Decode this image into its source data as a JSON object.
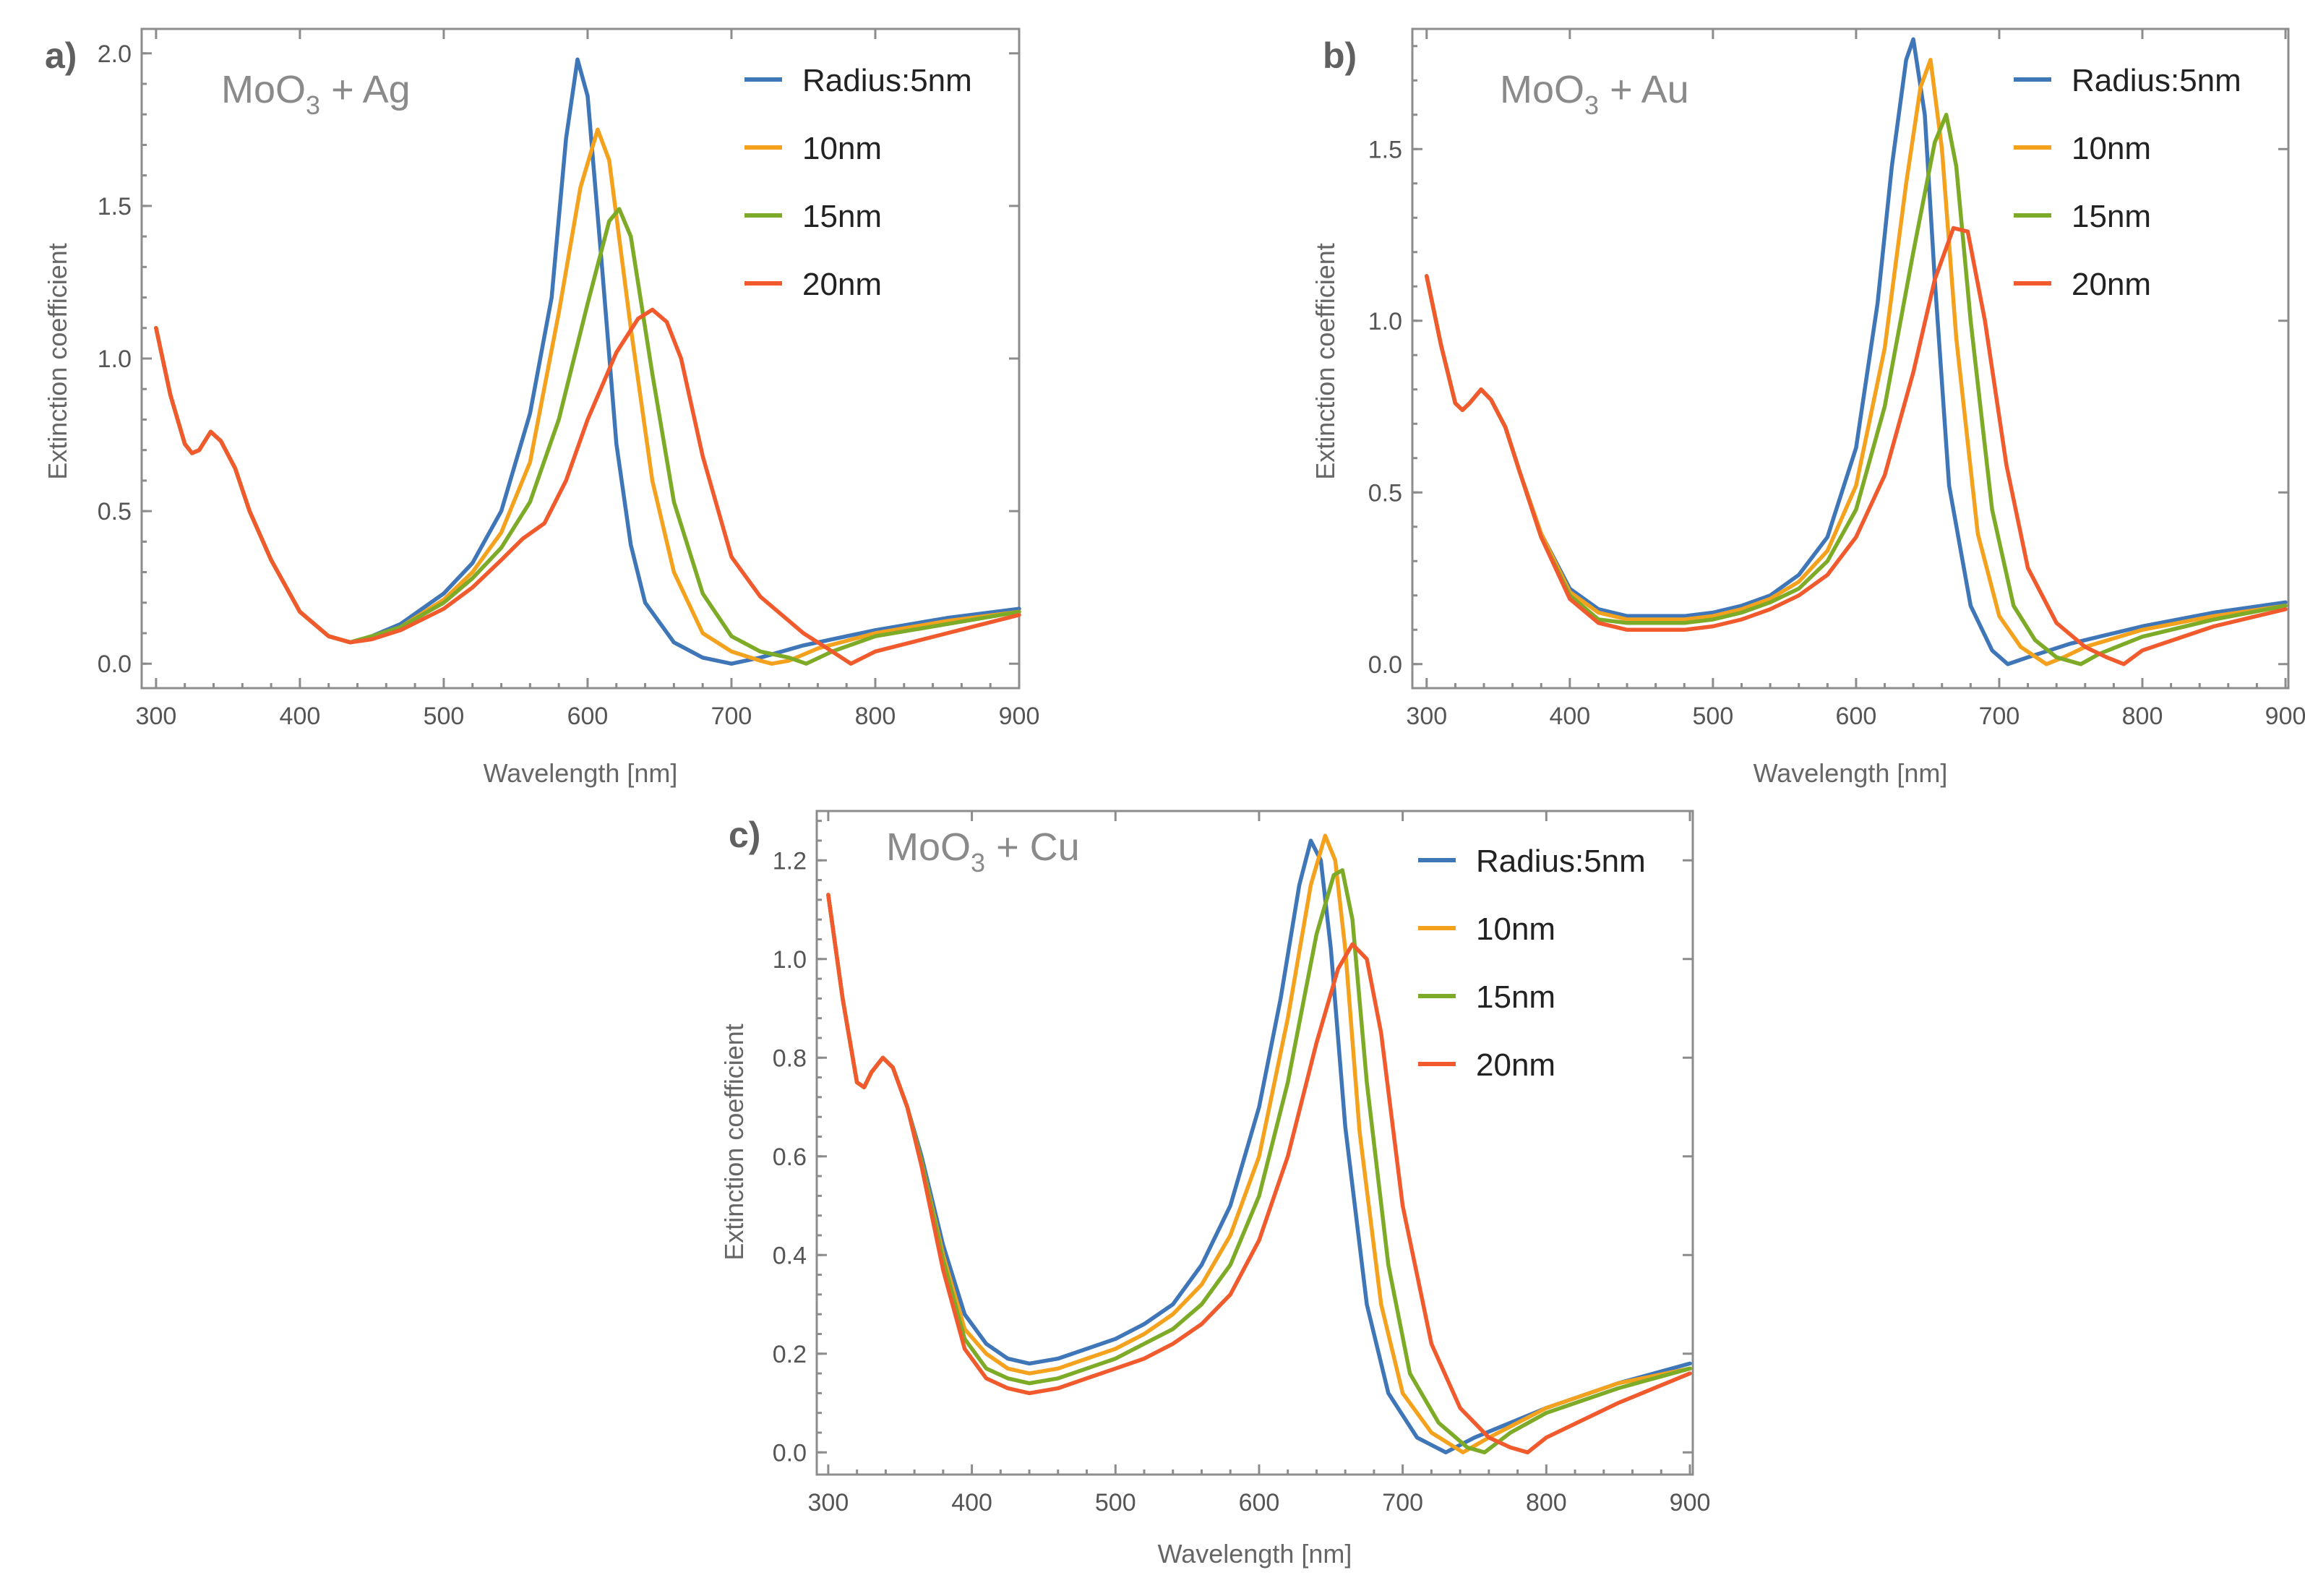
{
  "figure": {
    "colors": [
      "#3f76b8",
      "#f4a21e",
      "#7dab27",
      "#f15a2c"
    ],
    "legend": [
      "Radius:5nm",
      "10nm",
      "15nm",
      "20nm"
    ]
  },
  "chart_data": [
    {
      "type": "line",
      "panel_label": "a)",
      "title": "MoO3 + Ag",
      "title_main": "MoO",
      "title_sub": "3",
      "title_rest": " + Ag",
      "xlabel": "Wavelength [nm]",
      "ylabel": "Extinction coefficient",
      "xlim": [
        290,
        900
      ],
      "ylim": [
        -0.08,
        2.08
      ],
      "xticks": [
        300,
        400,
        500,
        600,
        700,
        800,
        900
      ],
      "xtick_labels": [
        "300",
        "400",
        "500",
        "600",
        "700",
        "800",
        "900"
      ],
      "yticks": [
        0.0,
        0.5,
        1.0,
        1.5,
        2.0
      ],
      "ytick_labels": [
        "0.0",
        "0.5",
        "1.0",
        "1.5",
        "2.0"
      ],
      "series": [
        {
          "name": "Radius:5nm",
          "x": [
            300,
            310,
            320,
            325,
            330,
            338,
            345,
            355,
            365,
            380,
            400,
            420,
            435,
            450,
            470,
            500,
            520,
            540,
            560,
            575,
            585,
            593,
            600,
            610,
            620,
            630,
            640,
            660,
            680,
            700,
            720,
            750,
            800,
            850,
            900
          ],
          "values": [
            1.1,
            0.88,
            0.72,
            0.69,
            0.7,
            0.76,
            0.73,
            0.64,
            0.5,
            0.34,
            0.17,
            0.09,
            0.07,
            0.09,
            0.13,
            0.23,
            0.33,
            0.5,
            0.82,
            1.2,
            1.72,
            1.98,
            1.86,
            1.3,
            0.72,
            0.39,
            0.2,
            0.07,
            0.02,
            0.0,
            0.02,
            0.06,
            0.11,
            0.15,
            0.18
          ]
        },
        {
          "name": "10nm",
          "x": [
            300,
            310,
            320,
            325,
            330,
            338,
            345,
            355,
            365,
            380,
            400,
            420,
            435,
            450,
            470,
            500,
            520,
            540,
            560,
            580,
            595,
            607,
            615,
            630,
            645,
            660,
            680,
            700,
            720,
            728,
            740,
            760,
            800,
            850,
            900
          ],
          "values": [
            1.1,
            0.88,
            0.72,
            0.69,
            0.7,
            0.76,
            0.73,
            0.64,
            0.5,
            0.34,
            0.17,
            0.09,
            0.07,
            0.09,
            0.12,
            0.21,
            0.3,
            0.43,
            0.66,
            1.15,
            1.56,
            1.75,
            1.65,
            1.1,
            0.6,
            0.3,
            0.1,
            0.04,
            0.01,
            0.0,
            0.01,
            0.05,
            0.1,
            0.14,
            0.17
          ]
        },
        {
          "name": "15nm",
          "x": [
            300,
            310,
            320,
            325,
            330,
            338,
            345,
            355,
            365,
            380,
            400,
            420,
            435,
            450,
            470,
            500,
            520,
            540,
            560,
            580,
            600,
            615,
            622,
            630,
            645,
            660,
            680,
            700,
            720,
            740,
            752,
            770,
            800,
            850,
            900
          ],
          "values": [
            1.1,
            0.88,
            0.72,
            0.69,
            0.7,
            0.76,
            0.73,
            0.64,
            0.5,
            0.34,
            0.17,
            0.09,
            0.07,
            0.09,
            0.12,
            0.2,
            0.28,
            0.38,
            0.53,
            0.8,
            1.18,
            1.45,
            1.49,
            1.4,
            0.95,
            0.53,
            0.23,
            0.09,
            0.04,
            0.02,
            0.0,
            0.04,
            0.09,
            0.13,
            0.17
          ]
        },
        {
          "name": "20nm",
          "x": [
            300,
            310,
            320,
            325,
            330,
            338,
            345,
            355,
            365,
            380,
            400,
            420,
            435,
            450,
            470,
            500,
            520,
            540,
            555,
            570,
            585,
            600,
            620,
            635,
            645,
            655,
            665,
            680,
            700,
            720,
            750,
            770,
            783,
            800,
            850,
            900
          ],
          "values": [
            1.1,
            0.88,
            0.72,
            0.69,
            0.7,
            0.76,
            0.73,
            0.64,
            0.5,
            0.34,
            0.17,
            0.09,
            0.07,
            0.08,
            0.11,
            0.18,
            0.25,
            0.34,
            0.41,
            0.46,
            0.6,
            0.8,
            1.02,
            1.13,
            1.16,
            1.12,
            1.0,
            0.68,
            0.35,
            0.22,
            0.1,
            0.04,
            0.0,
            0.04,
            0.1,
            0.16
          ]
        }
      ]
    },
    {
      "type": "line",
      "panel_label": "b)",
      "title": "MoO3 + Au",
      "title_main": "MoO",
      "title_sub": "3",
      "title_rest": " + Au",
      "xlabel": "Wavelength [nm]",
      "ylabel": "Extinction coefficient",
      "xlim": [
        290,
        902
      ],
      "ylim": [
        -0.07,
        1.85
      ],
      "xticks": [
        300,
        400,
        500,
        600,
        700,
        800,
        900
      ],
      "xtick_labels": [
        "300",
        "400",
        "500",
        "600",
        "700",
        "800",
        "900"
      ],
      "yticks": [
        0.0,
        0.5,
        1.0,
        1.5
      ],
      "ytick_labels": [
        "0.0",
        "0.5",
        "1.0",
        "1.5"
      ],
      "series": [
        {
          "name": "Radius:5nm",
          "x": [
            300,
            310,
            320,
            325,
            330,
            338,
            345,
            355,
            365,
            380,
            400,
            420,
            440,
            460,
            480,
            500,
            520,
            540,
            560,
            580,
            600,
            615,
            625,
            635,
            640,
            648,
            655,
            665,
            680,
            695,
            706,
            720,
            750,
            800,
            850,
            900
          ],
          "values": [
            1.13,
            0.93,
            0.76,
            0.74,
            0.76,
            0.8,
            0.77,
            0.69,
            0.56,
            0.38,
            0.22,
            0.16,
            0.14,
            0.14,
            0.14,
            0.15,
            0.17,
            0.2,
            0.26,
            0.37,
            0.63,
            1.05,
            1.45,
            1.76,
            1.82,
            1.6,
            1.12,
            0.52,
            0.17,
            0.04,
            0.0,
            0.02,
            0.06,
            0.11,
            0.15,
            0.18
          ]
        },
        {
          "name": "10nm",
          "x": [
            300,
            310,
            320,
            325,
            330,
            338,
            345,
            355,
            365,
            380,
            400,
            420,
            440,
            460,
            480,
            500,
            520,
            540,
            560,
            580,
            600,
            620,
            635,
            645,
            652,
            660,
            670,
            685,
            700,
            715,
            733,
            745,
            760,
            800,
            850,
            900
          ],
          "values": [
            1.13,
            0.93,
            0.76,
            0.74,
            0.76,
            0.8,
            0.77,
            0.69,
            0.56,
            0.38,
            0.21,
            0.15,
            0.13,
            0.13,
            0.13,
            0.14,
            0.16,
            0.19,
            0.24,
            0.33,
            0.52,
            0.92,
            1.4,
            1.68,
            1.76,
            1.5,
            0.95,
            0.38,
            0.14,
            0.05,
            0.0,
            0.02,
            0.05,
            0.1,
            0.14,
            0.17
          ]
        },
        {
          "name": "15nm",
          "x": [
            300,
            310,
            320,
            325,
            330,
            338,
            345,
            355,
            365,
            380,
            400,
            420,
            440,
            460,
            480,
            500,
            520,
            540,
            560,
            580,
            600,
            620,
            640,
            655,
            663,
            670,
            680,
            695,
            710,
            725,
            740,
            757,
            770,
            800,
            850,
            900
          ],
          "values": [
            1.13,
            0.93,
            0.76,
            0.74,
            0.76,
            0.8,
            0.77,
            0.69,
            0.56,
            0.37,
            0.2,
            0.13,
            0.12,
            0.12,
            0.12,
            0.13,
            0.15,
            0.18,
            0.22,
            0.3,
            0.45,
            0.75,
            1.2,
            1.52,
            1.6,
            1.45,
            1.0,
            0.45,
            0.17,
            0.07,
            0.02,
            0.0,
            0.03,
            0.08,
            0.13,
            0.17
          ]
        },
        {
          "name": "20nm",
          "x": [
            300,
            310,
            320,
            325,
            330,
            338,
            345,
            355,
            365,
            380,
            400,
            420,
            440,
            460,
            480,
            500,
            520,
            540,
            560,
            580,
            600,
            620,
            640,
            655,
            668,
            678,
            690,
            705,
            720,
            740,
            760,
            775,
            787,
            800,
            850,
            900
          ],
          "values": [
            1.13,
            0.93,
            0.76,
            0.74,
            0.76,
            0.8,
            0.77,
            0.69,
            0.56,
            0.37,
            0.19,
            0.12,
            0.1,
            0.1,
            0.1,
            0.11,
            0.13,
            0.16,
            0.2,
            0.26,
            0.37,
            0.55,
            0.85,
            1.12,
            1.27,
            1.26,
            1.0,
            0.58,
            0.28,
            0.12,
            0.05,
            0.02,
            0.0,
            0.04,
            0.11,
            0.16
          ]
        }
      ]
    },
    {
      "type": "line",
      "panel_label": "c)",
      "title": "MoO3 + Cu",
      "title_main": "MoO",
      "title_sub": "3",
      "title_rest": " + Cu",
      "xlabel": "Wavelength [nm]",
      "ylabel": "Extinction coefficient",
      "xlim": [
        292,
        902
      ],
      "ylim": [
        -0.045,
        1.3
      ],
      "xticks": [
        300,
        400,
        500,
        600,
        700,
        800,
        900
      ],
      "xtick_labels": [
        "300",
        "400",
        "500",
        "600",
        "700",
        "800",
        "900"
      ],
      "yticks": [
        0.0,
        0.2,
        0.4,
        0.6,
        0.8,
        1.0,
        1.2
      ],
      "ytick_labels": [
        "0.0",
        "0.2",
        "0.4",
        "0.6",
        "0.8",
        "1.0",
        "1.2"
      ],
      "series": [
        {
          "name": "Radius:5nm",
          "x": [
            300,
            310,
            320,
            325,
            330,
            338,
            345,
            355,
            365,
            380,
            395,
            410,
            425,
            440,
            460,
            480,
            500,
            520,
            540,
            560,
            580,
            600,
            615,
            628,
            636,
            643,
            650,
            660,
            675,
            690,
            710,
            730,
            750,
            800,
            850,
            900
          ],
          "values": [
            1.13,
            0.92,
            0.75,
            0.74,
            0.77,
            0.8,
            0.78,
            0.7,
            0.6,
            0.42,
            0.28,
            0.22,
            0.19,
            0.18,
            0.19,
            0.21,
            0.23,
            0.26,
            0.3,
            0.38,
            0.5,
            0.7,
            0.92,
            1.15,
            1.24,
            1.2,
            1.02,
            0.66,
            0.3,
            0.12,
            0.03,
            0.0,
            0.03,
            0.09,
            0.14,
            0.18
          ]
        },
        {
          "name": "10nm",
          "x": [
            300,
            310,
            320,
            325,
            330,
            338,
            345,
            355,
            365,
            380,
            395,
            410,
            425,
            440,
            460,
            480,
            500,
            520,
            540,
            560,
            580,
            600,
            620,
            636,
            646,
            653,
            660,
            670,
            685,
            700,
            720,
            742,
            760,
            800,
            850,
            900
          ],
          "values": [
            1.13,
            0.92,
            0.75,
            0.74,
            0.77,
            0.8,
            0.78,
            0.7,
            0.59,
            0.4,
            0.25,
            0.2,
            0.17,
            0.16,
            0.17,
            0.19,
            0.21,
            0.24,
            0.28,
            0.34,
            0.44,
            0.6,
            0.88,
            1.15,
            1.25,
            1.2,
            1.02,
            0.65,
            0.3,
            0.12,
            0.04,
            0.0,
            0.03,
            0.09,
            0.14,
            0.17
          ]
        },
        {
          "name": "15nm",
          "x": [
            300,
            310,
            320,
            325,
            330,
            338,
            345,
            355,
            365,
            380,
            395,
            410,
            425,
            440,
            460,
            480,
            500,
            520,
            540,
            560,
            580,
            600,
            620,
            640,
            652,
            658,
            665,
            675,
            690,
            705,
            725,
            745,
            757,
            775,
            800,
            850,
            900
          ],
          "values": [
            1.13,
            0.92,
            0.75,
            0.74,
            0.77,
            0.8,
            0.78,
            0.7,
            0.59,
            0.39,
            0.23,
            0.17,
            0.15,
            0.14,
            0.15,
            0.17,
            0.19,
            0.22,
            0.25,
            0.3,
            0.38,
            0.52,
            0.75,
            1.05,
            1.17,
            1.18,
            1.08,
            0.75,
            0.38,
            0.16,
            0.06,
            0.01,
            0.0,
            0.04,
            0.08,
            0.13,
            0.17
          ]
        },
        {
          "name": "20nm",
          "x": [
            300,
            310,
            320,
            325,
            330,
            338,
            345,
            355,
            365,
            380,
            395,
            410,
            425,
            440,
            460,
            480,
            500,
            520,
            540,
            560,
            580,
            600,
            620,
            640,
            655,
            665,
            675,
            685,
            700,
            720,
            740,
            760,
            775,
            787,
            800,
            850,
            900
          ],
          "values": [
            1.13,
            0.92,
            0.75,
            0.74,
            0.77,
            0.8,
            0.78,
            0.7,
            0.58,
            0.37,
            0.21,
            0.15,
            0.13,
            0.12,
            0.13,
            0.15,
            0.17,
            0.19,
            0.22,
            0.26,
            0.32,
            0.43,
            0.6,
            0.83,
            0.98,
            1.03,
            1.0,
            0.85,
            0.5,
            0.22,
            0.09,
            0.03,
            0.01,
            0.0,
            0.03,
            0.1,
            0.16
          ]
        }
      ]
    }
  ]
}
